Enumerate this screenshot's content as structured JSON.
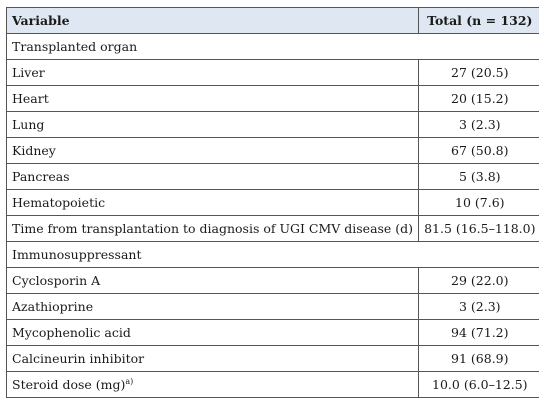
{
  "header": {
    "variable": "Variable",
    "total": "Total (n = 132)"
  },
  "rows": [
    {
      "type": "section",
      "label": "Transplanted organ"
    },
    {
      "type": "data",
      "label": "Liver",
      "value": "27 (20.5)"
    },
    {
      "type": "data",
      "label": "Heart",
      "value": "20 (15.2)"
    },
    {
      "type": "data",
      "label": "Lung",
      "value": "3 (2.3)"
    },
    {
      "type": "data",
      "label": "Kidney",
      "value": "67 (50.8)"
    },
    {
      "type": "data",
      "label": "Pancreas",
      "value": "5 (3.8)"
    },
    {
      "type": "data",
      "label": "Hematopoietic",
      "value": "10 (7.6)"
    },
    {
      "type": "data",
      "label": "Time from transplantation to diagnosis of UGI CMV disease (d)",
      "value": "81.5 (16.5–118.0)"
    },
    {
      "type": "section",
      "label": "Immunosuppressant"
    },
    {
      "type": "data",
      "label": "Cyclosporin A",
      "value": "29 (22.0)"
    },
    {
      "type": "data",
      "label": "Azathioprine",
      "value": "3 (2.3)"
    },
    {
      "type": "data",
      "label": "Mycophenolic acid",
      "value": "94 (71.2)"
    },
    {
      "type": "data",
      "label": "Calcineurin inhibitor",
      "value": "91 (68.9)"
    },
    {
      "type": "data",
      "label": "Steroid dose (mg)",
      "sup": "a)",
      "value": "10.0 (6.0–12.5)"
    }
  ]
}
